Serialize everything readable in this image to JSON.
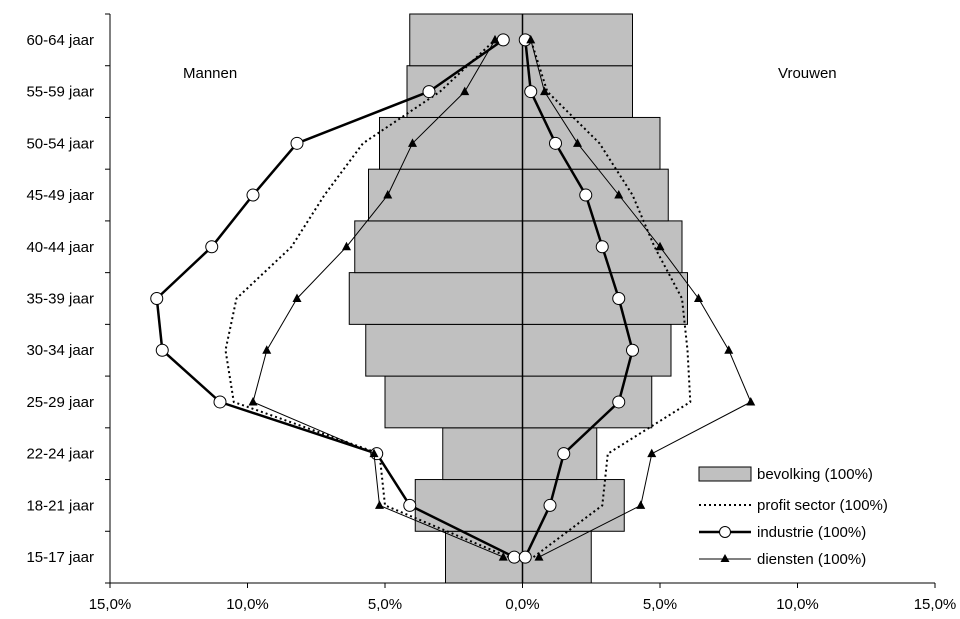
{
  "chart_data": {
    "type": "population-pyramid",
    "side_labels": {
      "left": "Mannen",
      "right": "Vrouwen"
    },
    "categories": [
      "15-17 jaar",
      "18-21 jaar",
      "22-24 jaar",
      "25-29 jaar",
      "30-34 jaar",
      "35-39 jaar",
      "40-44 jaar",
      "45-49 jaar",
      "50-54 jaar",
      "55-59 jaar",
      "60-64 jaar"
    ],
    "x_ticks": [
      "15,0%",
      "10,0%",
      "5,0%",
      "0,0%",
      "5,0%",
      "10,0%",
      "15,0%"
    ],
    "xlim": [
      -15,
      15
    ],
    "bars": {
      "name": "bevolking (100%)",
      "color": "#c0c0c0",
      "men": [
        2.8,
        3.9,
        2.9,
        5.0,
        5.7,
        6.3,
        6.1,
        5.6,
        5.2,
        4.2,
        4.1
      ],
      "women": [
        2.5,
        3.7,
        2.7,
        4.7,
        5.4,
        6.0,
        5.8,
        5.3,
        5.0,
        4.0,
        4.0
      ]
    },
    "series": [
      {
        "name": "profit sector (100%)",
        "style": "dotted",
        "men": [
          0.5,
          5.0,
          5.2,
          10.5,
          10.8,
          10.4,
          8.4,
          7.2,
          5.8,
          3.0,
          1.0
        ],
        "women": [
          0.4,
          2.9,
          3.1,
          6.1,
          6.0,
          5.8,
          4.8,
          4.0,
          2.8,
          0.9,
          0.3
        ]
      },
      {
        "name": "industrie (100%)",
        "style": "thick-circle",
        "men": [
          0.3,
          4.1,
          5.3,
          11.0,
          13.1,
          13.3,
          11.3,
          9.8,
          8.2,
          3.4,
          0.7
        ],
        "women": [
          0.1,
          1.0,
          1.5,
          3.5,
          4.0,
          3.5,
          2.9,
          2.3,
          1.2,
          0.3,
          0.1
        ]
      },
      {
        "name": "diensten (100%)",
        "style": "thin-triangle",
        "men": [
          0.7,
          5.2,
          5.4,
          9.8,
          9.3,
          8.2,
          6.4,
          4.9,
          4.0,
          2.1,
          1.0
        ],
        "women": [
          0.6,
          4.3,
          4.7,
          8.3,
          7.5,
          6.4,
          5.0,
          3.5,
          2.0,
          0.8,
          0.3
        ]
      }
    ]
  }
}
